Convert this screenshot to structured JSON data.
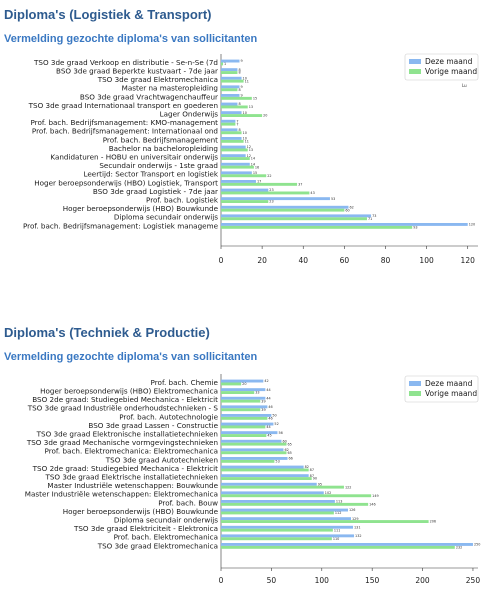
{
  "charts": [
    {
      "title": "Diploma's (Logistiek & Transport)",
      "subtitle": "Vermelding gezochte diploma's van sollicitanten"
    },
    {
      "title": "Diploma's (Techniek & Productie)",
      "subtitle": "Vermelding gezochte diploma's van sollicitanten"
    }
  ],
  "colors": {
    "current": "#8ab8f0",
    "previous": "#8fe38f",
    "heading": "#2e5b8f",
    "subheading": "#3a78c2"
  },
  "chart_data": [
    {
      "type": "bar",
      "orientation": "horizontal",
      "categories": [
        "TSO 3de graad Verkoop en distributie - Se-n-Se (7d",
        "BSO 3de graad Beperkte kustvaart - 7de jaar",
        "TSO 3de graad Elektromechanica",
        "Master na masteropleiding",
        "BSO 3de graad Vrachtwagenchauffeur",
        "TSO 3de graad Internationaal transport en goederen",
        "Lager Onderwijs",
        "Prof. bach. Bedrijfsmanagement: KMO-management",
        "Prof. bach. Bedrijfsmanagement: Internationaal ond",
        "Prof. bach. Bedrijfsmanagement",
        "Bachelor na bacheloropleiding",
        "Kandidaturen - HOBU en universitair onderwijs",
        "Secundair onderwijs - 1ste graad",
        "Leertijd: Sector Transport en logistiek",
        "Hoger beroepsonderwijs (HBO) Logistiek, Transport",
        "BSO 3de graad Logistiek - 7de jaar",
        "Prof. bach. Logistiek",
        "Hoger beroepsonderwijs (HBO) Bouwkunde",
        "Diploma secundair onderwijs",
        "Prof. bach. Bedrijfsmanagement: Logistiek manageme"
      ],
      "series": [
        {
          "name": "Deze maand",
          "values": [
            9,
            8,
            10,
            9,
            9,
            8,
            10,
            7,
            8,
            10,
            12,
            12,
            14,
            15,
            17,
            23,
            53,
            62,
            73,
            120
          ]
        },
        {
          "name": "Vorige maand",
          "values": [
            1,
            8,
            11,
            8,
            15,
            13,
            20,
            7,
            10,
            11,
            13,
            14,
            16,
            22,
            37,
            43,
            23,
            60,
            71,
            93
          ]
        }
      ],
      "xticks": [
        0,
        20,
        40,
        60,
        80,
        100,
        120
      ],
      "xlim": [
        0,
        125
      ],
      "legend": "top-right",
      "legend_note": "Lu"
    },
    {
      "type": "bar",
      "orientation": "horizontal",
      "categories": [
        "Prof. bach. Chemie",
        "Hoger beroepsonderwijs (HBO) Elektromechanica",
        "BSO 2de graad: Studiegebied Mechanica - Elektricit",
        "TSO 3de graad Industriële onderhoudstechnieken - S",
        "Prof. bach. Autotechnologie",
        "BSO 3de graad Lassen - Constructie",
        "TSO 3de graad Elektronische installatietechnieken",
        "TSO 3de graad Mechanische vormgevingstechnieken",
        "Prof. bach. Elektromechanica: Elektromechanica",
        "TSO 3de graad Autotechnieken",
        "TSO 2de graad: Studiegebied Mechanica - Elektricit",
        "TSO 3de graad Elektrische installatietechnieken",
        "Master Industriële wetenschappen: Bouwkunde",
        "Master Industriële wetenschappen: Elektromechanica",
        "Prof. bach. Bouw",
        "Hoger beroepsonderwijs (HBO) Bouwkunde",
        "Diploma secundair onderwijs",
        "TSO 3de graad Elektriciteit - Elektronica",
        "Prof. bach. Elektromechanica",
        "TSO 3de graad Elektromechanica"
      ],
      "series": [
        {
          "name": "Deze maand",
          "values": [
            42,
            44,
            44,
            46,
            50,
            52,
            56,
            60,
            62,
            66,
            82,
            87,
            95,
            102,
            113,
            126,
            129,
            131,
            132,
            250
          ]
        },
        {
          "name": "Vorige maand",
          "values": [
            20,
            33,
            39,
            39,
            46,
            44,
            45,
            65,
            65,
            53,
            87,
            90,
            122,
            149,
            146,
            112,
            206,
            111,
            110,
            232
          ]
        }
      ],
      "xticks": [
        0,
        50,
        100,
        150,
        200,
        250
      ],
      "xlim": [
        0,
        255
      ],
      "legend": "top-right"
    }
  ]
}
